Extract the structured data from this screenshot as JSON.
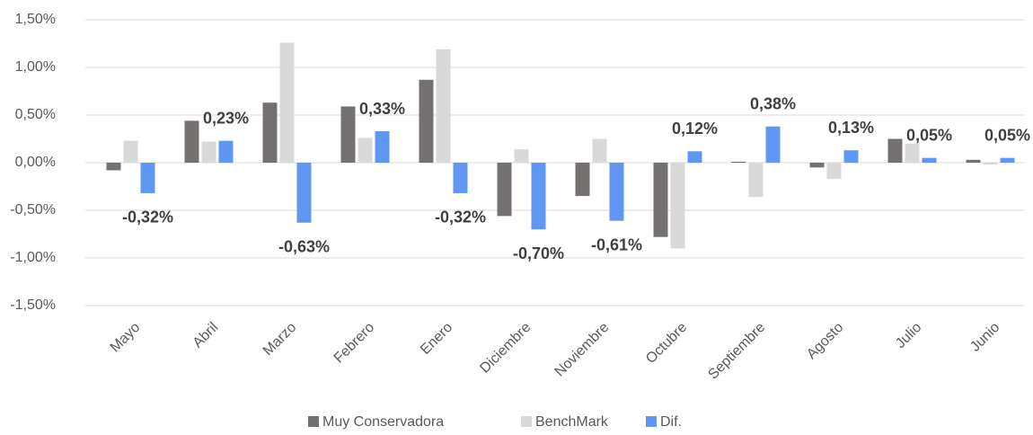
{
  "chart_data": {
    "type": "bar",
    "categories": [
      "Mayo",
      "Abril",
      "Marzo",
      "Febrero",
      "Enero",
      "Diciembre",
      "Noviembre",
      "Octubre",
      "Septiembre",
      "Agosto",
      "Julio",
      "Junio"
    ],
    "series": [
      {
        "name": "Muy Conservadora",
        "color": "#767171",
        "values": [
          -0.08,
          0.44,
          0.63,
          0.59,
          0.87,
          -0.56,
          -0.35,
          -0.78,
          0.01,
          -0.05,
          0.25,
          0.03
        ]
      },
      {
        "name": "BenchMark",
        "color": "#d9d9d9",
        "values": [
          0.23,
          0.22,
          1.26,
          0.26,
          1.19,
          0.14,
          0.25,
          -0.9,
          -0.36,
          -0.17,
          0.2,
          -0.02
        ]
      },
      {
        "name": "Dif.",
        "color": "#5f97f2",
        "values": [
          -0.32,
          0.23,
          -0.63,
          0.33,
          -0.32,
          -0.7,
          -0.61,
          0.12,
          0.38,
          0.13,
          0.05,
          0.05
        ],
        "value_labels": [
          "-0,32%",
          "0,23%",
          "-0,63%",
          "0,33%",
          "-0,32%",
          "-0,70%",
          "-0,61%",
          "0,12%",
          "0,38%",
          "0,13%",
          "0,05%",
          "0,05%"
        ]
      }
    ],
    "ylim": [
      -1.5,
      1.5
    ],
    "yticks": [
      {
        "value": -1.5,
        "label": "-1,50%"
      },
      {
        "value": -1.0,
        "label": "-1,00%"
      },
      {
        "value": -0.5,
        "label": "-0,50%"
      },
      {
        "value": 0,
        "label": "0,00%"
      },
      {
        "value": 0.5,
        "label": "0,50%"
      },
      {
        "value": 1.0,
        "label": "1,00%"
      },
      {
        "value": 1.5,
        "label": "1,50%"
      }
    ],
    "grid": true,
    "legend": "bottom"
  }
}
